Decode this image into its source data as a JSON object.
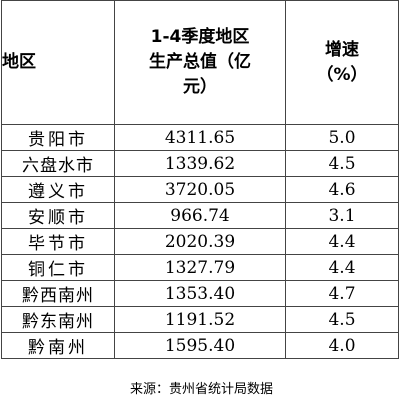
{
  "table": {
    "headers": {
      "region": "地区",
      "gdp_line1": "1-4季度地区",
      "gdp_line2": "生产总值（亿",
      "gdp_line3": "元）",
      "growth_line1": "增速",
      "growth_line2": "（%）"
    },
    "rows": [
      {
        "region": "贵阳市",
        "gdp": "4311.65",
        "growth": "5.0"
      },
      {
        "region": "六盘水市",
        "gdp": "1339.62",
        "growth": "4.5"
      },
      {
        "region": "遵义市",
        "gdp": "3720.05",
        "growth": "4.6"
      },
      {
        "region": "安顺市",
        "gdp": "966.74",
        "growth": "3.1"
      },
      {
        "region": "毕节市",
        "gdp": "2020.39",
        "growth": "4.4"
      },
      {
        "region": "铜仁市",
        "gdp": "1327.79",
        "growth": "4.4"
      },
      {
        "region": "黔西南州",
        "gdp": "1353.40",
        "growth": "4.7"
      },
      {
        "region": "黔东南州",
        "gdp": "1191.52",
        "growth": "4.5"
      },
      {
        "region": "黔南州",
        "gdp": "1595.40",
        "growth": "4.0"
      }
    ]
  },
  "source": "来源：贵州省统计局数据"
}
